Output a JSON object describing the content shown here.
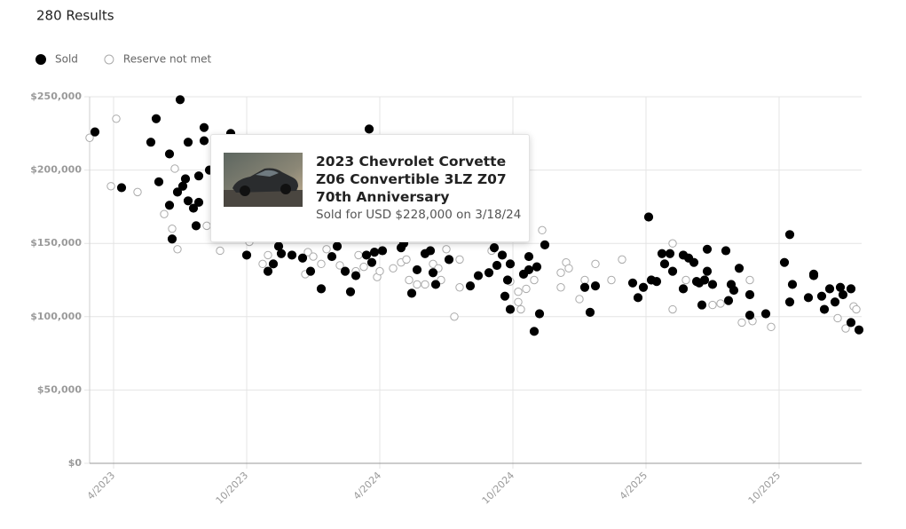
{
  "chart_data": {
    "type": "scatter",
    "title": "280 Results",
    "series": [
      {
        "name": "Sold",
        "color": "#000000",
        "filled": true,
        "x": [
          2023.18,
          2023.28,
          2023.39,
          2023.41,
          2023.42,
          2023.46,
          2023.46,
          2023.47,
          2023.49,
          2023.5,
          2023.51,
          2023.52,
          2023.53,
          2023.53,
          2023.55,
          2023.56,
          2023.57,
          2023.57,
          2023.59,
          2023.59,
          2023.61,
          2023.69,
          2023.75,
          2023.83,
          2023.85,
          2023.87,
          2023.88,
          2023.92,
          2023.96,
          2023.99,
          2024.03,
          2024.07,
          2024.09,
          2024.12,
          2024.14,
          2024.16,
          2024.2,
          2024.21,
          2024.22,
          2024.23,
          2024.26,
          2024.33,
          2024.34,
          2024.37,
          2024.39,
          2024.42,
          2024.44,
          2024.45,
          2024.46,
          2024.51,
          2024.59,
          2024.62,
          2024.66,
          2024.68,
          2024.69,
          2024.71,
          2024.72,
          2024.73,
          2024.74,
          2024.74,
          2024.79,
          2024.81,
          2024.81,
          2024.83,
          2024.84,
          2024.85,
          2024.87,
          2025.02,
          2025.04,
          2025.06,
          2025.2,
          2025.22,
          2025.24,
          2025.26,
          2025.27,
          2025.29,
          2025.31,
          2025.32,
          2025.34,
          2025.35,
          2025.39,
          2025.39,
          2025.41,
          2025.43,
          2025.44,
          2025.45,
          2025.46,
          2025.47,
          2025.48,
          2025.48,
          2025.5,
          2025.55,
          2025.56,
          2025.57,
          2025.58,
          2025.6,
          2025.64,
          2025.64,
          2025.7,
          2025.77,
          2025.79,
          2025.79,
          2025.8,
          2025.86,
          2025.88,
          2025.88,
          2025.91,
          2025.92,
          2025.94,
          2025.96,
          2025.98,
          2025.99,
          2026.02,
          2026.02,
          2026.05
        ],
        "values": [
          226000,
          188000,
          219000,
          235000,
          192000,
          211000,
          176000,
          153000,
          185000,
          248000,
          189000,
          194000,
          219000,
          179000,
          174000,
          162000,
          178000,
          196000,
          220000,
          229000,
          200000,
          225000,
          142000,
          131000,
          136000,
          148000,
          143000,
          142000,
          140000,
          131000,
          119000,
          141000,
          148000,
          131000,
          117000,
          128000,
          142000,
          228000,
          137000,
          144000,
          145000,
          147000,
          150000,
          116000,
          132000,
          143000,
          145000,
          130000,
          122000,
          139000,
          121000,
          128000,
          130000,
          147000,
          135000,
          142000,
          114000,
          125000,
          105000,
          136000,
          129000,
          141000,
          132000,
          90000,
          134000,
          102000,
          149000,
          120000,
          103000,
          121000,
          123000,
          113000,
          120000,
          168000,
          125000,
          124000,
          143000,
          136000,
          143000,
          131000,
          142000,
          119000,
          140000,
          137000,
          124000,
          123000,
          108000,
          125000,
          146000,
          131000,
          122000,
          145000,
          111000,
          122000,
          118000,
          133000,
          115000,
          101000,
          102000,
          137000,
          156000,
          110000,
          122000,
          113000,
          129000,
          128000,
          114000,
          105000,
          119000,
          110000,
          120000,
          115000,
          119000,
          96000,
          91000
        ]
      },
      {
        "name": "Reserve not met",
        "color": "#aaaaaa",
        "filled": false,
        "x": [
          2023.16,
          2023.26,
          2023.24,
          2023.34,
          2023.44,
          2023.47,
          2023.48,
          2023.49,
          2023.6,
          2023.65,
          2023.76,
          2023.81,
          2023.83,
          2023.97,
          2023.98,
          2024.0,
          2024.03,
          2024.05,
          2024.1,
          2024.16,
          2024.17,
          2024.19,
          2024.24,
          2024.25,
          2024.3,
          2024.33,
          2024.35,
          2024.36,
          2024.39,
          2024.42,
          2024.45,
          2024.47,
          2024.48,
          2024.5,
          2024.53,
          2024.55,
          2024.55,
          2024.67,
          2024.74,
          2024.77,
          2024.77,
          2024.78,
          2024.8,
          2024.83,
          2024.86,
          2024.93,
          2024.93,
          2024.95,
          2024.96,
          2025.0,
          2025.02,
          2025.06,
          2025.12,
          2025.16,
          2025.35,
          2025.35,
          2025.4,
          2025.5,
          2025.53,
          2025.61,
          2025.64,
          2025.65,
          2025.72,
          2025.97,
          2026.0,
          2026.03,
          2026.04
        ],
        "values": [
          222000,
          235000,
          189000,
          185000,
          170000,
          160000,
          201000,
          146000,
          162000,
          145000,
          151000,
          136000,
          142000,
          129000,
          144000,
          141000,
          136000,
          146000,
          135000,
          131000,
          142000,
          134000,
          127000,
          131000,
          133000,
          137000,
          139000,
          125000,
          122000,
          122000,
          136000,
          133000,
          125000,
          146000,
          100000,
          139000,
          120000,
          145000,
          124000,
          117000,
          110000,
          105000,
          119000,
          125000,
          159000,
          130000,
          120000,
          137000,
          133000,
          112000,
          125000,
          136000,
          125000,
          139000,
          105000,
          150000,
          125000,
          108000,
          109000,
          96000,
          125000,
          97000,
          93000,
          99000,
          92000,
          107000,
          105000
        ]
      }
    ],
    "xlim": [
      2023.16,
      2026.06
    ],
    "xticks": [
      {
        "value": 2023.25,
        "label": "4/2023"
      },
      {
        "value": 2023.75,
        "label": "10/2023"
      },
      {
        "value": 2024.25,
        "label": "4/2024"
      },
      {
        "value": 2024.75,
        "label": "10/2024"
      },
      {
        "value": 2025.25,
        "label": "4/2025"
      },
      {
        "value": 2025.75,
        "label": "10/2025"
      }
    ],
    "ylim": [
      0,
      250000
    ],
    "yticks": [
      {
        "value": 0,
        "label": "$0"
      },
      {
        "value": 50000,
        "label": "$50,000"
      },
      {
        "value": 100000,
        "label": "$100,000"
      },
      {
        "value": 150000,
        "label": "$150,000"
      },
      {
        "value": 200000,
        "label": "$200,000"
      },
      {
        "value": 250000,
        "label": "$250,000"
      }
    ],
    "grid": true,
    "legend": "top-left",
    "tooltip": {
      "title": "2023 Chevrolet Corvette Z06 Convertible 3LZ Z07 70th Anniversary",
      "text": "Sold for USD $228,000 on 3/18/24"
    }
  }
}
